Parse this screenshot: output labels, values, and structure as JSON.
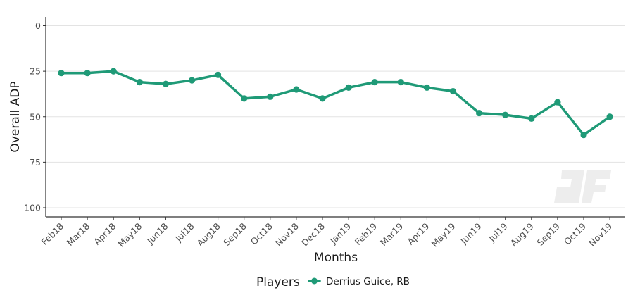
{
  "chart_data": {
    "type": "line",
    "xlabel": "Months",
    "ylabel": "Overall ADP",
    "categories": [
      "Feb18",
      "Mar18",
      "Apr18",
      "May18",
      "Jun18",
      "Jul18",
      "Aug18",
      "Sep18",
      "Oct18",
      "Nov18",
      "Dec18",
      "Jan19",
      "Feb19",
      "Mar19",
      "Apr19",
      "May19",
      "Jun19",
      "Jul19",
      "Aug19",
      "Sep19",
      "Oct19",
      "Nov19"
    ],
    "series": [
      {
        "name": "Derrius Guice, RB",
        "color": "#1f9a77",
        "values": [
          26,
          26,
          25,
          31,
          32,
          30,
          27,
          40,
          39,
          35,
          40,
          34,
          31,
          31,
          34,
          36,
          48,
          49,
          51,
          42,
          60,
          50
        ]
      }
    ],
    "ylim": [
      0,
      100
    ],
    "y_reversed": true,
    "yticks": [
      0,
      25,
      50,
      75,
      100
    ],
    "grid": "horizontal",
    "legend": {
      "title": "Players",
      "position": "bottom"
    },
    "watermark": "dF"
  }
}
